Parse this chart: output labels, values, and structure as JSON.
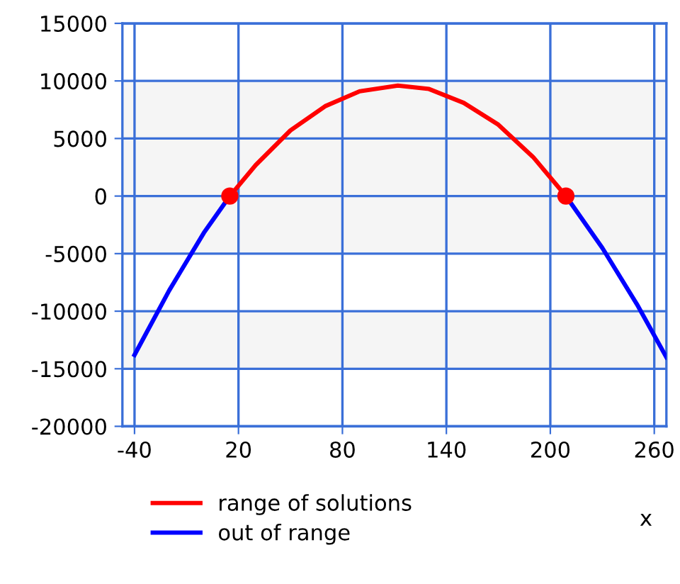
{
  "chart_data": {
    "type": "line",
    "xlabel": "x",
    "series": [
      {
        "name": "range of solutions",
        "color": "#ff0000",
        "x": [
          15,
          30,
          50,
          70,
          90,
          112,
          130,
          150,
          170,
          190,
          209
        ],
        "values": [
          0,
          2700,
          5700,
          7800,
          9100,
          9600,
          9300,
          8100,
          6200,
          3400,
          0
        ]
      },
      {
        "name": "out of range",
        "color": "#0000ff",
        "x": [
          -40,
          -20,
          0,
          15
        ],
        "values": [
          -13800,
          -8200,
          -3200,
          0
        ]
      },
      {
        "color": "#0000ff",
        "x": [
          209,
          230,
          250,
          267
        ],
        "values": [
          0,
          -4500,
          -9400,
          -14000
        ]
      },
      {
        "type": "scatter",
        "color": "#ff0000",
        "x": [
          15,
          209
        ],
        "values": [
          0,
          0
        ]
      }
    ],
    "xlim": [
      -47,
      267
    ],
    "xticks": [
      -40,
      20,
      80,
      140,
      200,
      260
    ],
    "ylim": [
      -20000,
      15000
    ],
    "yticks": [
      -20000,
      -15000,
      -10000,
      -5000,
      0,
      5000,
      10000,
      15000
    ],
    "bands": [
      {
        "axis": "y",
        "from": -5000,
        "to": 10000,
        "color": "#f5f5f5"
      },
      {
        "axis": "y",
        "from": -15000,
        "to": -10000,
        "color": "#f5f5f5"
      }
    ],
    "grid": true,
    "legend": "bottom"
  }
}
